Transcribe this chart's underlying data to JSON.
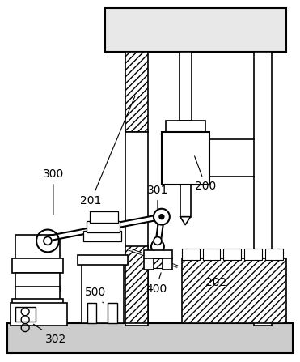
{
  "bg_color": "#ffffff",
  "line_color": "#000000",
  "label_fontsize": 10
}
